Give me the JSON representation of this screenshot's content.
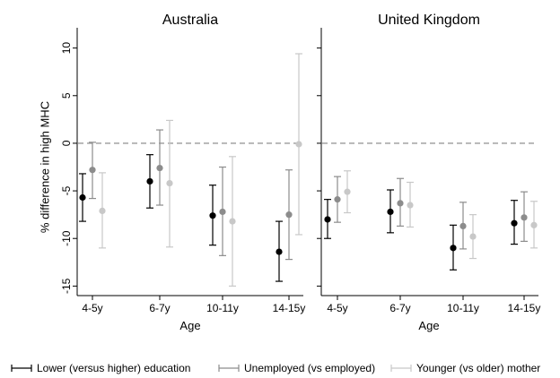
{
  "chart_data": {
    "type": "scatter",
    "ylabel": "% difference in high MHC",
    "xlabel": "Age",
    "ylim": [
      -16,
      11
    ],
    "yticks": [
      10,
      5,
      0,
      -5,
      -10,
      -15
    ],
    "reference_line": 0,
    "categories": [
      "4-5y",
      "6-7y",
      "10-11y",
      "14-15y"
    ],
    "grid": false,
    "legend_position": "bottom",
    "series_colors": [
      "#000000",
      "#8c8c8c",
      "#c8c8c8"
    ],
    "legend": [
      "Lower (versus higher) education",
      "Unemployed (vs employed)",
      "Younger (vs older) mother"
    ],
    "panels": [
      {
        "title": "Australia",
        "series": [
          {
            "name": "Lower (versus higher) education",
            "estimate": [
              -5.7,
              -4.0,
              -7.6,
              -11.4
            ],
            "ci_low": [
              -8.2,
              -6.8,
              -10.7,
              -14.5
            ],
            "ci_high": [
              -3.2,
              -1.2,
              -4.4,
              -8.2
            ]
          },
          {
            "name": "Unemployed (vs employed)",
            "estimate": [
              -2.8,
              -2.6,
              -7.2,
              -7.5
            ],
            "ci_low": [
              -5.8,
              -6.5,
              -11.8,
              -12.2
            ],
            "ci_high": [
              0.1,
              1.4,
              -2.5,
              -2.8
            ]
          },
          {
            "name": "Younger (vs older) mother",
            "estimate": [
              -7.1,
              -4.2,
              -8.2,
              -0.1
            ],
            "ci_low": [
              -11.0,
              -10.9,
              -15.0,
              -9.6
            ],
            "ci_high": [
              -3.1,
              2.4,
              -1.4,
              9.4
            ]
          }
        ]
      },
      {
        "title": "United Kingdom",
        "series": [
          {
            "name": "Lower (versus higher) education",
            "estimate": [
              -8.0,
              -7.2,
              -11.0,
              -8.4
            ],
            "ci_low": [
              -10.0,
              -9.4,
              -13.3,
              -10.6
            ],
            "ci_high": [
              -5.9,
              -4.9,
              -8.6,
              -6.0
            ]
          },
          {
            "name": "Unemployed (vs employed)",
            "estimate": [
              -5.9,
              -6.3,
              -8.7,
              -7.8
            ],
            "ci_low": [
              -8.3,
              -8.7,
              -11.1,
              -10.3
            ],
            "ci_high": [
              -3.5,
              -3.7,
              -6.2,
              -5.1
            ]
          },
          {
            "name": "Younger (vs older) mother",
            "estimate": [
              -5.1,
              -6.5,
              -9.8,
              -8.6
            ],
            "ci_low": [
              -7.3,
              -8.8,
              -12.1,
              -11.0
            ],
            "ci_high": [
              -2.9,
              -4.1,
              -7.5,
              -6.1
            ]
          }
        ]
      }
    ]
  }
}
